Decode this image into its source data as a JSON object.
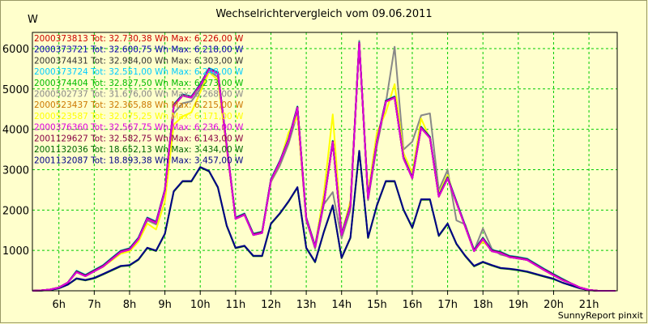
{
  "chart_data": {
    "type": "line",
    "title": "Wechselrichtervergleich vom 09.06.2011",
    "ylabel": "W",
    "footer": "SunnyReport pinxit",
    "ylim": [
      0,
      6400
    ],
    "xlim": [
      5.25,
      21.8
    ],
    "yticks": [
      1000,
      2000,
      3000,
      4000,
      5000,
      6000
    ],
    "xticks": [
      {
        "label": "6h",
        "value": 6
      },
      {
        "label": "7h",
        "value": 7
      },
      {
        "label": "8h",
        "value": 8
      },
      {
        "label": "9h",
        "value": 9
      },
      {
        "label": "10h",
        "value": 10
      },
      {
        "label": "11h",
        "value": 11
      },
      {
        "label": "12h",
        "value": 12
      },
      {
        "label": "13h",
        "value": 13
      },
      {
        "label": "14h",
        "value": 14
      },
      {
        "label": "15h",
        "value": 15
      },
      {
        "label": "16h",
        "value": 16
      },
      {
        "label": "17h",
        "value": 17
      },
      {
        "label": "18h",
        "value": 18
      },
      {
        "label": "19h",
        "value": 19
      },
      {
        "label": "20h",
        "value": 20
      },
      {
        "label": "21h",
        "value": 21
      }
    ],
    "grid": true,
    "legend_position": "top-left",
    "x": [
      5.25,
      5.5,
      5.75,
      6,
      6.25,
      6.5,
      6.75,
      7,
      7.25,
      7.5,
      7.75,
      8,
      8.25,
      8.5,
      8.75,
      9,
      9.25,
      9.5,
      9.75,
      10,
      10.25,
      10.5,
      10.75,
      11,
      11.25,
      11.5,
      11.75,
      12,
      12.25,
      12.5,
      12.75,
      13,
      13.25,
      13.5,
      13.75,
      14,
      14.25,
      14.5,
      14.75,
      15,
      15.25,
      15.5,
      15.75,
      16,
      16.25,
      16.5,
      16.75,
      17,
      17.25,
      17.5,
      17.75,
      18,
      18.25,
      18.5,
      18.75,
      19,
      19.25,
      19.5,
      19.75,
      20,
      20.25,
      20.5,
      20.75,
      21,
      21.25,
      21.5,
      21.75
    ],
    "series": [
      {
        "name": "2000373813 Tot: 32.730,38 Wh Max: 6.226,00 W",
        "color": "#cc0000",
        "group": "A"
      },
      {
        "name": "2000373721 Tot: 32.600,75 Wh Max: 6.218,00 W",
        "color": "#0000aa",
        "group": "A"
      },
      {
        "name": "2000374431 Tot: 32.984,00 Wh Max: 6.303,00 W",
        "color": "#333333",
        "group": "A"
      },
      {
        "name": "2000373724 Tot: 32.551,00 Wh Max: 6.248,00 W",
        "color": "#00ccff",
        "group": "A"
      },
      {
        "name": "2000374404 Tot: 32.827,50 Wh Max: 6.273,00 W",
        "color": "#00bb00",
        "group": "A"
      },
      {
        "name": "2000502737 Tot: 31.676,00 Wh Max: 6.268,00 W",
        "color": "#888888",
        "group": "B"
      },
      {
        "name": "2000523437 Tot: 32.365,88 Wh Max: 6.215,00 W",
        "color": "#cc7700",
        "group": "A"
      },
      {
        "name": "2000523587 Tot: 32.075,25 Wh Max: 6.171,00 W",
        "color": "#ffff00",
        "group": "C"
      },
      {
        "name": "2000376360 Tot: 32.567,75 Wh Max: 6.236,00 W",
        "color": "#dd00dd",
        "group": "A"
      },
      {
        "name": "2001129627 Tot: 32.582,75 Wh Max: 6.143,00 W",
        "color": "#880044",
        "group": "A"
      },
      {
        "name": "2001132036 Tot: 18.652,13 Wh Max: 3.434,00 W",
        "color": "#006600",
        "group": "D"
      },
      {
        "name": "2001132087 Tot: 18.893,38 Wh Max: 3.457,00 W",
        "color": "#000088",
        "group": "D"
      }
    ],
    "profiles": {
      "A": [
        0,
        10,
        30,
        80,
        200,
        480,
        380,
        500,
        620,
        800,
        980,
        1040,
        1300,
        1800,
        1700,
        2500,
        4600,
        4850,
        4800,
        5100,
        5500,
        5400,
        3600,
        1800,
        1900,
        1400,
        1450,
        2750,
        3200,
        3750,
        4550,
        1800,
        1100,
        2200,
        3700,
        1400,
        2100,
        6150,
        2300,
        3700,
        4700,
        4800,
        3300,
        2800,
        4050,
        3800,
        2350,
        2800,
        2200,
        1600,
        1000,
        1300,
        1000,
        950,
        850,
        820,
        780,
        650,
        520,
        400,
        280,
        180,
        80,
        20,
        0,
        0,
        0
      ],
      "B": [
        0,
        10,
        30,
        80,
        200,
        470,
        370,
        490,
        600,
        780,
        950,
        1000,
        1250,
        1750,
        1650,
        2450,
        4400,
        4650,
        4700,
        5000,
        5450,
        5300,
        3550,
        1800,
        1900,
        1400,
        1450,
        2700,
        3100,
        3650,
        4400,
        1750,
        1050,
        2150,
        2450,
        1300,
        2000,
        6200,
        2250,
        3600,
        4650,
        6050,
        3500,
        3700,
        4350,
        4400,
        2500,
        3000,
        1750,
        1650,
        1000,
        1550,
        1050,
        900,
        850,
        800,
        780,
        650,
        520,
        400,
        280,
        180,
        80,
        20,
        0,
        0,
        0
      ],
      "C": [
        0,
        10,
        30,
        80,
        200,
        460,
        360,
        470,
        580,
        740,
        900,
        960,
        1200,
        1650,
        1500,
        2200,
        4100,
        4300,
        4400,
        4900,
        5400,
        5200,
        3500,
        1800,
        1900,
        1400,
        1450,
        2700,
        3150,
        3900,
        4300,
        1800,
        1100,
        2400,
        4350,
        1400,
        2200,
        6100,
        2400,
        3900,
        4400,
        5100,
        3400,
        2900,
        4250,
        3750,
        2400,
        2850,
        2150,
        1600,
        1000,
        1200,
        1000,
        950,
        850,
        820,
        780,
        650,
        520,
        400,
        280,
        180,
        80,
        20,
        0,
        0,
        0
      ],
      "D": [
        0,
        5,
        20,
        60,
        150,
        290,
        250,
        300,
        400,
        500,
        600,
        620,
        760,
        1050,
        980,
        1400,
        2450,
        2700,
        2700,
        3050,
        2950,
        2550,
        1600,
        1050,
        1100,
        850,
        850,
        1650,
        1900,
        2200,
        2550,
        1050,
        700,
        1450,
        2100,
        800,
        1300,
        3450,
        1300,
        2100,
        2700,
        2700,
        2000,
        1550,
        2250,
        2250,
        1350,
        1650,
        1150,
        850,
        600,
        700,
        620,
        550,
        530,
        500,
        460,
        400,
        340,
        280,
        200,
        130,
        60,
        15,
        0,
        0,
        0
      ]
    }
  }
}
